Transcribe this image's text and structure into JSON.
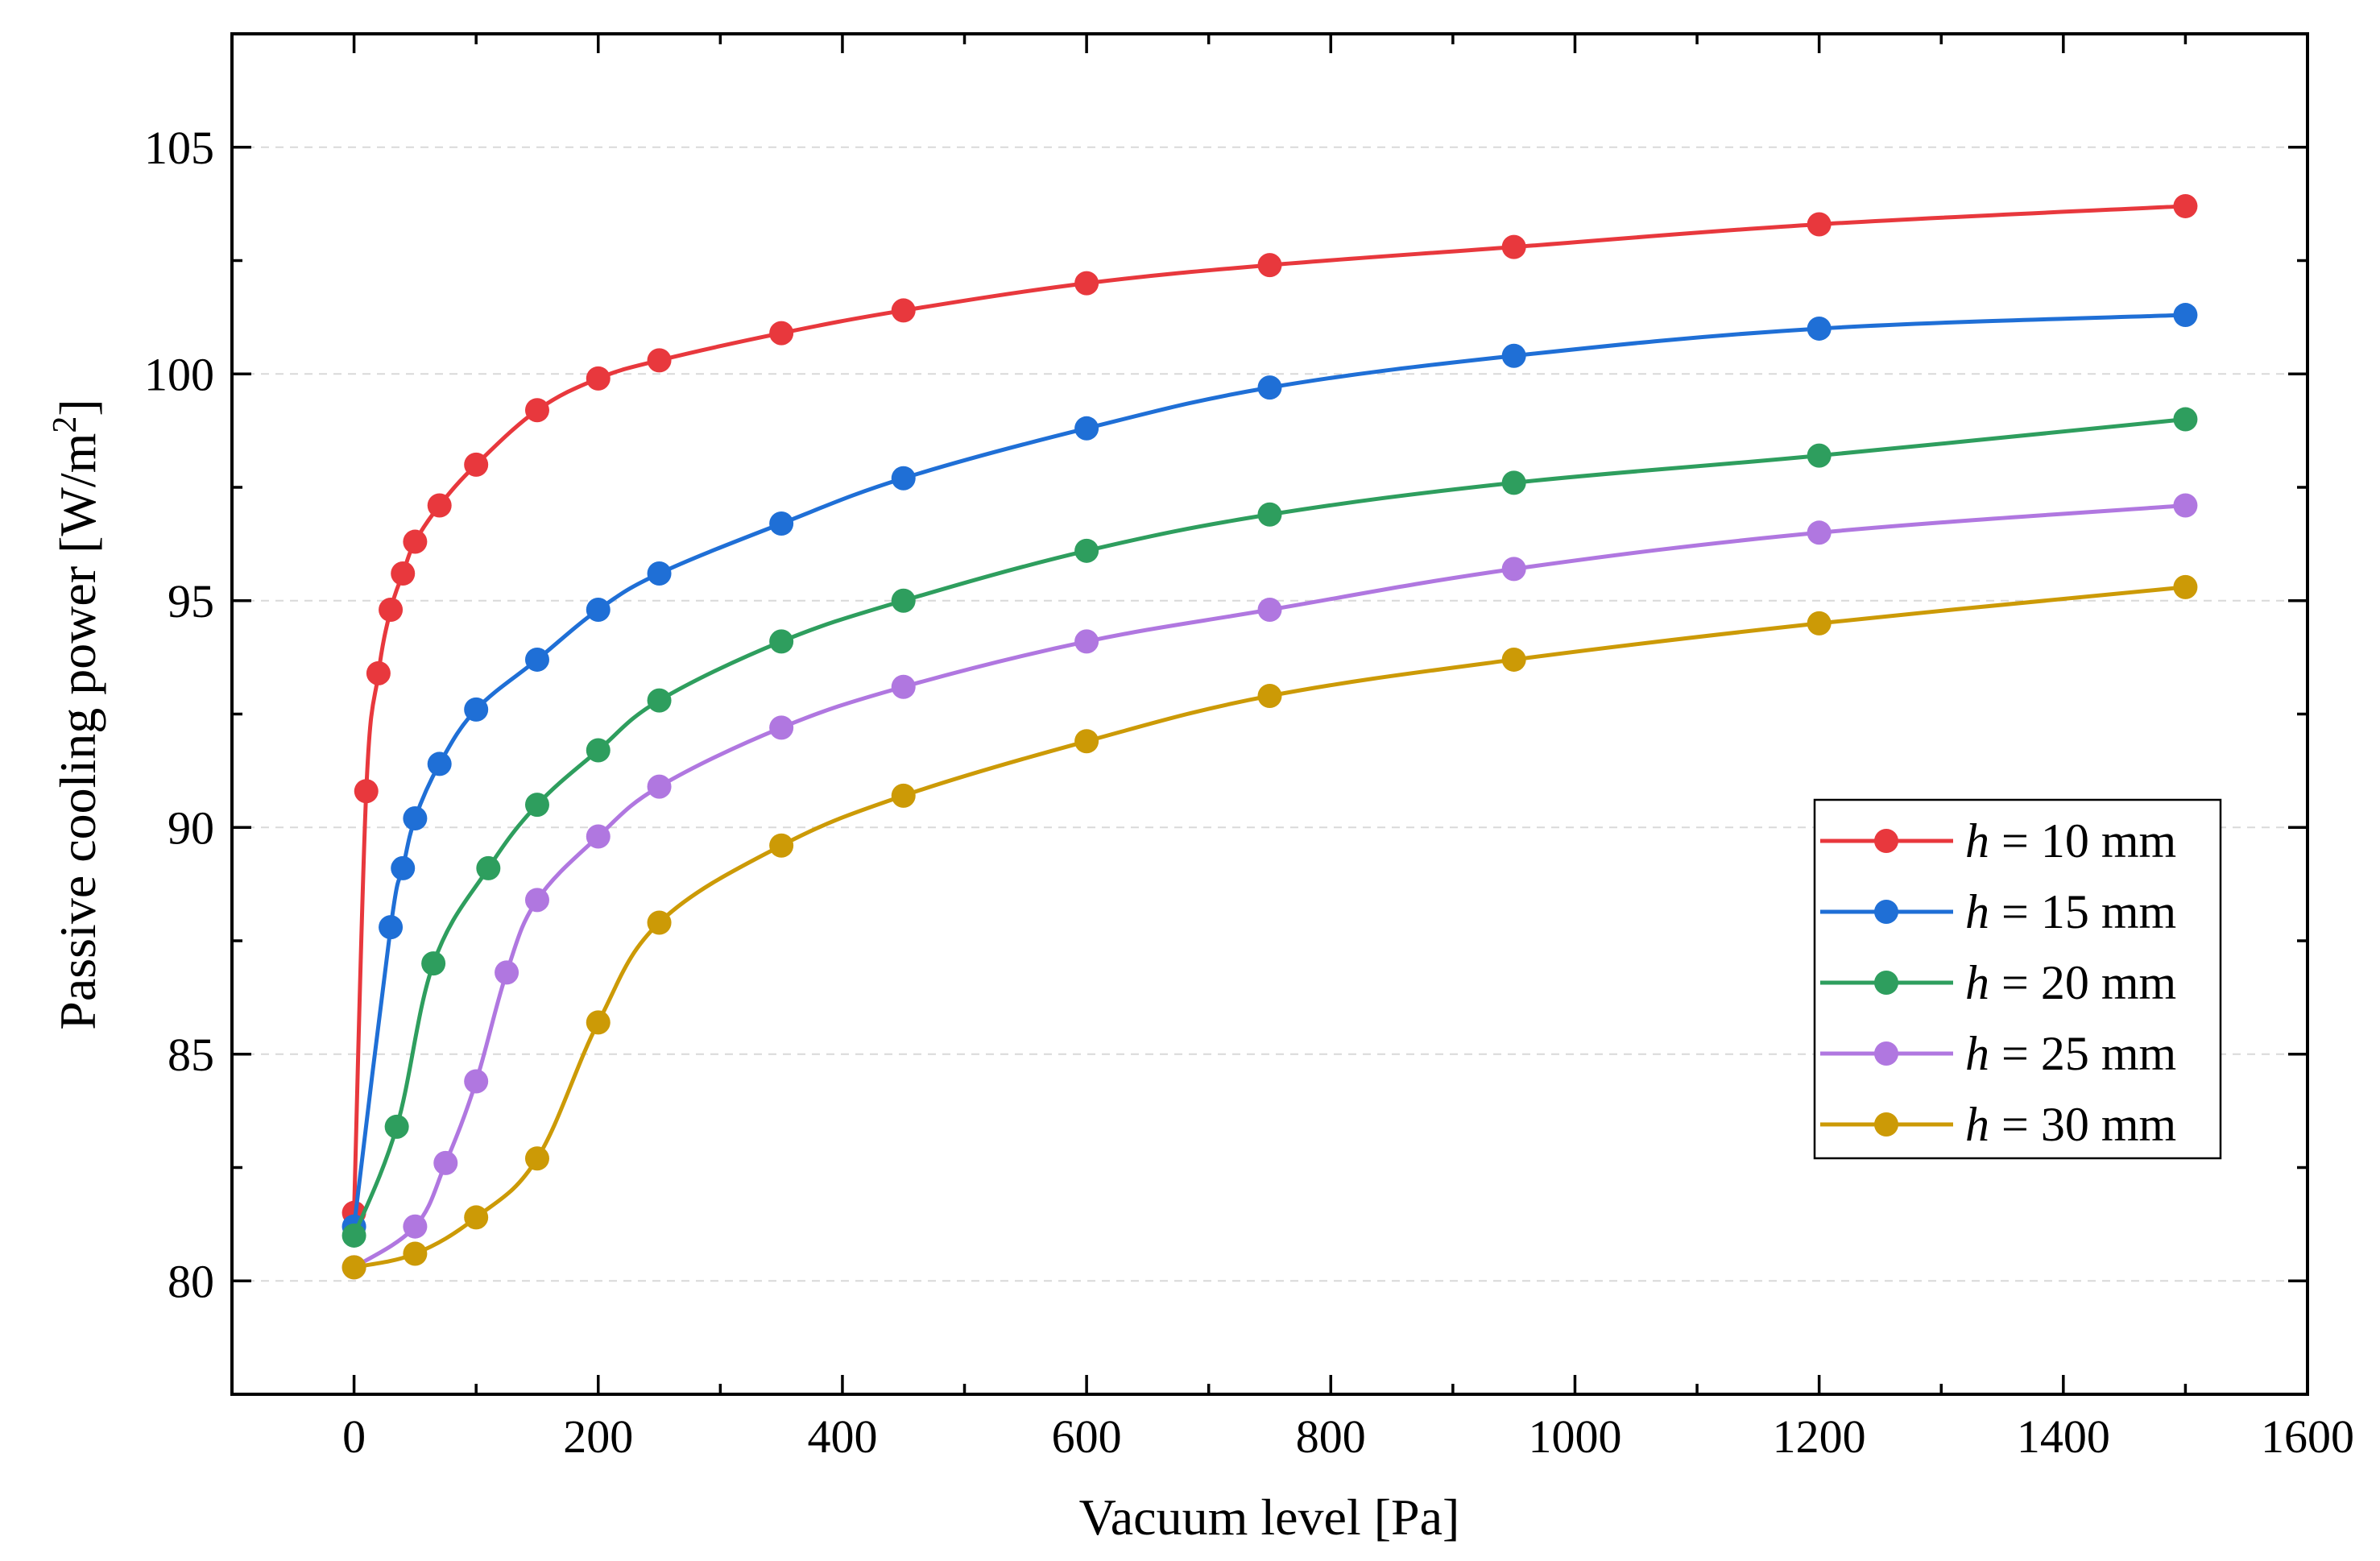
{
  "chart_data": {
    "type": "line",
    "title": "",
    "xlabel": "Vacuum level [Pa]",
    "ylabel_prefix": "Passive cooling power [W/m",
    "ylabel_sup": "2",
    "ylabel_suffix": "]",
    "xlim": [
      -100,
      1600
    ],
    "ylim": [
      77.5,
      107.5
    ],
    "xticks": [
      0,
      200,
      400,
      600,
      800,
      1000,
      1200,
      1400,
      1600
    ],
    "xtick_labels": [
      "0",
      "200",
      "400",
      "600",
      "800",
      "1000",
      "1200",
      "1400",
      "1600"
    ],
    "yticks": [
      80,
      85,
      90,
      95,
      100,
      105
    ],
    "ytick_labels": [
      "80",
      "85",
      "90",
      "95",
      "100",
      "105"
    ],
    "grid": "horizontal dashed",
    "legend_position": "center-right",
    "series": [
      {
        "name": "h = 10 mm",
        "legend_var": "h",
        "legend_rest": " = 10 mm",
        "color": "#e8383d",
        "x": [
          0,
          10,
          20,
          30,
          40,
          50,
          70,
          100,
          150,
          200,
          250,
          350,
          450,
          600,
          750,
          950,
          1200,
          1500
        ],
        "y": [
          81.5,
          90.8,
          93.4,
          94.8,
          95.6,
          96.3,
          97.1,
          98.0,
          99.2,
          99.9,
          100.3,
          100.9,
          101.4,
          102.0,
          102.4,
          102.8,
          103.3,
          103.7
        ]
      },
      {
        "name": "h = 15 mm",
        "legend_var": "h",
        "legend_rest": " = 15 mm",
        "color": "#1f6fd6",
        "x": [
          0,
          30,
          40,
          50,
          70,
          100,
          150,
          200,
          250,
          350,
          450,
          600,
          750,
          950,
          1200,
          1500
        ],
        "y": [
          81.2,
          87.8,
          89.1,
          90.2,
          91.4,
          92.6,
          93.7,
          94.8,
          95.6,
          96.7,
          97.7,
          98.8,
          99.7,
          100.4,
          101.0,
          101.3
        ]
      },
      {
        "name": "h = 20 mm",
        "legend_var": "h",
        "legend_rest": " = 20 mm",
        "color": "#2e9e5e",
        "x": [
          0,
          35,
          65,
          110,
          150,
          200,
          250,
          350,
          450,
          600,
          750,
          950,
          1200,
          1500
        ],
        "y": [
          81.0,
          83.4,
          87.0,
          89.1,
          90.5,
          91.7,
          92.8,
          94.1,
          95.0,
          96.1,
          96.9,
          97.6,
          98.2,
          99.0
        ]
      },
      {
        "name": "h = 25 mm",
        "legend_var": "h",
        "legend_rest": " = 25 mm",
        "color": "#b077e0",
        "x": [
          0,
          50,
          75,
          100,
          125,
          150,
          200,
          250,
          350,
          450,
          600,
          750,
          950,
          1200,
          1500
        ],
        "y": [
          80.3,
          81.2,
          82.6,
          84.4,
          86.8,
          88.4,
          89.8,
          90.9,
          92.2,
          93.1,
          94.1,
          94.8,
          95.7,
          96.5,
          97.1
        ]
      },
      {
        "name": "h = 30 mm",
        "legend_var": "h",
        "legend_rest": " = 30 mm",
        "color": "#cc9a06",
        "x": [
          0,
          50,
          100,
          150,
          200,
          250,
          350,
          450,
          600,
          750,
          950,
          1200,
          1500
        ],
        "y": [
          80.3,
          80.6,
          81.4,
          82.7,
          85.7,
          87.9,
          89.6,
          90.7,
          91.9,
          92.9,
          93.7,
          94.5,
          95.3
        ]
      }
    ]
  }
}
